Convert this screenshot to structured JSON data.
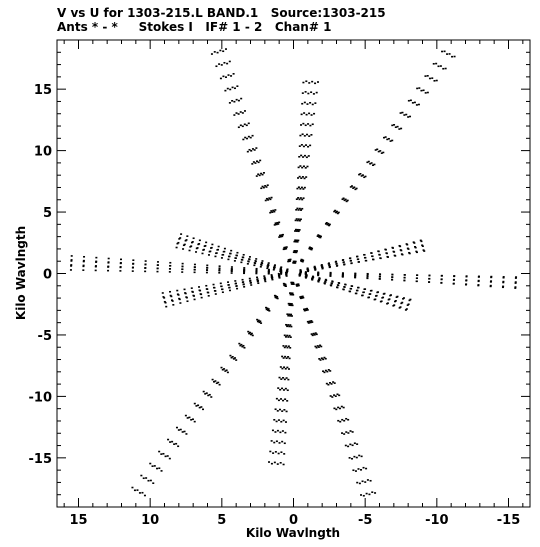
{
  "header": {
    "line1": "V vs U for 1303-215.L BAND.1   Source:1303-215",
    "line2": "Ants * - *     Stokes I   IF# 1 - 2   Chan# 1"
  },
  "chart_data": {
    "type": "scatter",
    "title": "V vs U for 1303-215.L BAND.1   Source:1303-215",
    "subtitle": "Ants * - *     Stokes I   IF# 1 - 2   Chan# 1",
    "xlabel": "Kilo Wavlngth",
    "ylabel": "Kilo Wavlngth",
    "xlim": [
      16.5,
      -16.5
    ],
    "ylim": [
      -19,
      19
    ],
    "x_ticks": [
      15,
      10,
      5,
      0,
      -5,
      -10,
      -15
    ],
    "x_tick_labels": [
      "15",
      "10",
      "5",
      "0",
      "-5",
      "-10",
      "-15"
    ],
    "y_ticks": [
      15,
      10,
      5,
      0,
      -5,
      -10,
      -15
    ],
    "y_tick_labels": [
      "15",
      "10",
      "5",
      "0",
      "-5",
      "-10",
      "-15"
    ],
    "grid": false,
    "marker_color": "#000000",
    "arms": [
      {
        "u": 5.2,
        "v": 18.0
      },
      {
        "u": -5.2,
        "v": -18.0
      },
      {
        "u": -10.8,
        "v": 17.8
      },
      {
        "u": 10.8,
        "v": -17.8
      },
      {
        "u": -9.0,
        "v": 2.2
      },
      {
        "u": 9.0,
        "v": -2.2
      },
      {
        "u": 8.0,
        "v": 2.6
      },
      {
        "u": -8.0,
        "v": -2.6
      },
      {
        "u": -1.2,
        "v": 15.5
      },
      {
        "u": 1.2,
        "v": -15.5
      },
      {
        "u": 15.5,
        "v": 0.8
      },
      {
        "u": -15.5,
        "v": -0.8
      }
    ],
    "points_per_arm": 18,
    "track_count": 6
  }
}
